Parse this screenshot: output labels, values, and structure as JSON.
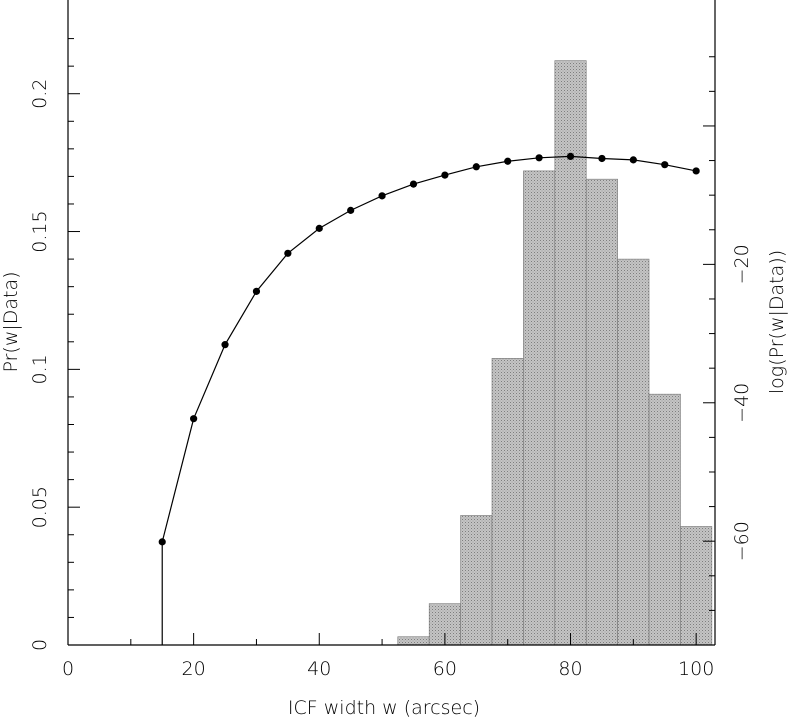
{
  "chart_data": {
    "type": "bar",
    "title": "",
    "xlabel": "ICF width w (arcsec)",
    "ylabel": "Pr(w|Data)",
    "y2label": "log(Pr(w|Data))",
    "xlim": [
      0,
      103
    ],
    "ylim": [
      0,
      0.234
    ],
    "y2lim": [
      -75,
      18.2
    ],
    "x_ticks": [
      0,
      20,
      40,
      60,
      80,
      100
    ],
    "y_ticks": [
      0,
      0.05,
      0.1,
      0.15,
      0.2
    ],
    "y_tick_labels": [
      "0",
      "0.05",
      "0.1",
      "0.15",
      "0.2"
    ],
    "y2_ticks": [
      -20,
      -40,
      -60
    ],
    "y2_tick_labels": [
      "−20",
      "−40",
      "−60"
    ],
    "histogram": {
      "bin_edges": [
        52.5,
        57.5,
        62.5,
        67.5,
        72.5,
        77.5,
        82.5,
        87.5,
        92.5,
        97.5,
        102.5
      ],
      "values": [
        0.003,
        0.015,
        0.047,
        0.104,
        0.172,
        0.212,
        0.169,
        0.14,
        0.091,
        0.043
      ]
    },
    "series": [
      {
        "axis": "right",
        "x": [
          15,
          20,
          25,
          30,
          35,
          40,
          45,
          50,
          55,
          60,
          65,
          70,
          75,
          80,
          85,
          90,
          95,
          100
        ],
        "values": [
          -60.1,
          -42.3,
          -31.6,
          -23.9,
          -18.4,
          -14.8,
          -12.2,
          -10.1,
          -8.4,
          -7.1,
          -5.9,
          -5.1,
          -4.6,
          -4.4,
          -4.7,
          -4.9,
          -5.6,
          -6.5
        ]
      }
    ],
    "grid": false
  }
}
